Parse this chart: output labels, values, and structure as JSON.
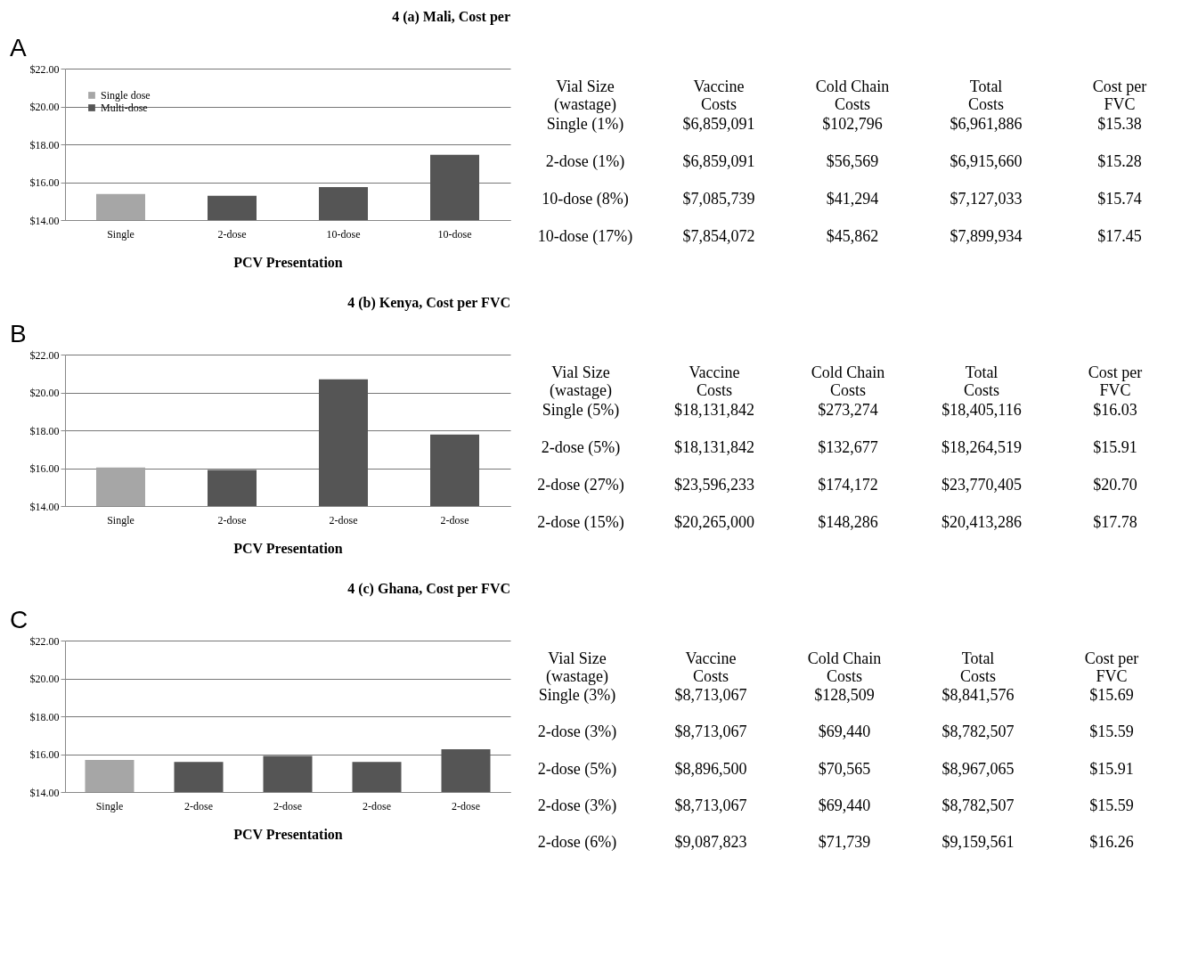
{
  "chart_data": [
    {
      "type": "bar",
      "title": "4 (a) Mali, Cost per",
      "annotations": [
        "A"
      ],
      "xlabel": "PCV Presentation",
      "categories": [
        "Single",
        "2-dose",
        "10-dose",
        "10-dose"
      ],
      "series": [
        {
          "name": "Single dose",
          "color": "#a6a6a6",
          "values": [
            15.38,
            null,
            null,
            null
          ]
        },
        {
          "name": "Multi-dose",
          "color": "#555555",
          "values": [
            null,
            15.28,
            15.74,
            17.45
          ]
        }
      ],
      "ylim": [
        14,
        22
      ],
      "yticks": [
        {
          "value": 14,
          "label": "$14.00"
        },
        {
          "value": 16,
          "label": "$16.00"
        },
        {
          "value": 18,
          "label": "$18.00"
        },
        {
          "value": 20,
          "label": "$20.00"
        },
        {
          "value": 22,
          "label": "$22.00"
        }
      ],
      "grid": "y",
      "legend": "top left"
    },
    {
      "type": "other",
      "categories": [
        "Vial Size\n(wastage)",
        "Vaccine\nCosts",
        "Cold Chain\nCosts",
        "Total\nCosts",
        "Cost per\nFVC"
      ],
      "cell_labels": [
        [
          "Single (1%)",
          "$6,859,091",
          "$102,796",
          "$6,961,886",
          "$15.38"
        ],
        [
          "2-dose (1%)",
          "$6,859,091",
          "$56,569",
          "$6,915,660",
          "$15.28"
        ],
        [
          "10-dose (8%)",
          "$7,085,739",
          "$41,294",
          "$7,127,033",
          "$15.74"
        ],
        [
          "10-dose (17%)",
          "$7,854,072",
          "$45,862",
          "$7,899,934",
          "$17.45"
        ]
      ]
    },
    {
      "type": "bar",
      "title": "4 (b) Kenya, Cost per FVC",
      "annotations": [
        "B"
      ],
      "xlabel": "PCV Presentation",
      "categories": [
        "Single",
        "2-dose",
        "2-dose",
        "2-dose"
      ],
      "series": [
        {
          "name": "Single dose",
          "color": "#a6a6a6",
          "values": [
            16.03,
            null,
            null,
            null
          ]
        },
        {
          "name": "Multi-dose",
          "color": "#555555",
          "values": [
            null,
            15.91,
            20.7,
            17.78
          ]
        }
      ],
      "ylim": [
        14,
        22
      ],
      "yticks": [
        {
          "value": 14,
          "label": "$14.00"
        },
        {
          "value": 16,
          "label": "$16.00"
        },
        {
          "value": 18,
          "label": "$18.00"
        },
        {
          "value": 20,
          "label": "$20.00"
        },
        {
          "value": 22,
          "label": "$22.00"
        }
      ],
      "grid": "y",
      "legend": "top left"
    },
    {
      "type": "other",
      "categories": [
        "Vial Size\n(wastage)",
        "Vaccine\nCosts",
        "Cold Chain\nCosts",
        "Total\nCosts",
        "Cost per\nFVC"
      ],
      "cell_labels": [
        [
          "Single (5%)",
          "$18,131,842",
          "$273,274",
          "$18,405,116",
          "$16.03"
        ],
        [
          "2-dose (5%)",
          "$18,131,842",
          "$132,677",
          "$18,264,519",
          "$15.91"
        ],
        [
          "2-dose (27%)",
          "$23,596,233",
          "$174,172",
          "$23,770,405",
          "$20.70"
        ],
        [
          "2-dose (15%)",
          "$20,265,000",
          "$148,286",
          "$20,413,286",
          "$17.78"
        ]
      ]
    },
    {
      "type": "bar",
      "title": "4 (c) Ghana, Cost per FVC",
      "annotations": [
        "C"
      ],
      "xlabel": "PCV Presentation",
      "categories": [
        "Single",
        "2-dose",
        "2-dose",
        "2-dose",
        "2-dose"
      ],
      "series": [
        {
          "name": "Single dose",
          "color": "#a6a6a6",
          "values": [
            15.69,
            null,
            null,
            null,
            null
          ]
        },
        {
          "name": "Multi-dose",
          "color": "#555555",
          "values": [
            null,
            15.59,
            15.91,
            15.59,
            16.26
          ]
        }
      ],
      "ylim": [
        14,
        22
      ],
      "yticks": [
        {
          "value": 14,
          "label": "$14.00"
        },
        {
          "value": 16,
          "label": "$16.00"
        },
        {
          "value": 18,
          "label": "$18.00"
        },
        {
          "value": 20,
          "label": "$20.00"
        },
        {
          "value": 22,
          "label": "$22.00"
        }
      ],
      "grid": "y",
      "legend": "top left"
    },
    {
      "type": "other",
      "categories": [
        "Vial Size\n(wastage)",
        "Vaccine\nCosts",
        "Cold Chain\nCosts",
        "Total\nCosts",
        "Cost per\nFVC"
      ],
      "cell_labels": [
        [
          "Single (3%)",
          "$8,713,067",
          "$128,509",
          "$8,841,576",
          "$15.69"
        ],
        [
          "2-dose (3%)",
          "$8,713,067",
          "$69,440",
          "$8,782,507",
          "$15.59"
        ],
        [
          "2-dose (5%)",
          "$8,896,500",
          "$70,565",
          "$8,967,065",
          "$15.91"
        ],
        [
          "2-dose (3%)",
          "$8,713,067",
          "$69,440",
          "$8,782,507",
          "$15.59"
        ],
        [
          "2-dose (6%)",
          "$9,087,823",
          "$71,739",
          "$9,159,561",
          "$16.26"
        ]
      ]
    }
  ]
}
